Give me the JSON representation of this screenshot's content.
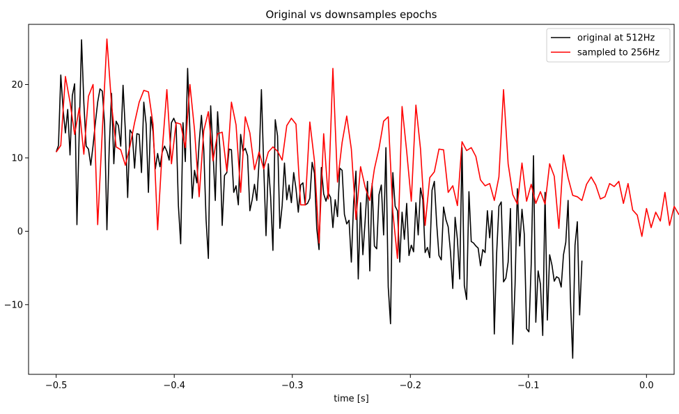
{
  "chart_data": {
    "type": "line",
    "title": "Original vs downsamples epochs",
    "xlabel": "time [s]",
    "ylabel": "",
    "xlim": [
      -0.5234,
      0.0234
    ],
    "ylim": [
      -19.5,
      28.2
    ],
    "xticks": [
      -0.5,
      -0.4,
      -0.3,
      -0.2,
      -0.1,
      0.0
    ],
    "xtick_labels": [
      "−0.5",
      "−0.4",
      "−0.3",
      "−0.2",
      "−0.1",
      "0.0"
    ],
    "yticks": [
      -10,
      0,
      10,
      20
    ],
    "ytick_labels": [
      "−10",
      "0",
      "10",
      "20"
    ],
    "grid": false,
    "legend_position": "top-right",
    "series": [
      {
        "name": "original at 512Hz",
        "color": "#000000",
        "x_start": -0.5,
        "dx": 0.001953125,
        "values": [
          10.8,
          11.7,
          21.3,
          16.6,
          13.4,
          16.6,
          10.4,
          18.5,
          20.1,
          0.9,
          13.5,
          26.1,
          17.5,
          11.6,
          11.2,
          9.0,
          11.7,
          14.8,
          17.6,
          19.4,
          19.1,
          14.6,
          0.2,
          11.3,
          18.8,
          9.2,
          15.0,
          14.4,
          11.6,
          19.9,
          13.7,
          4.6,
          13.8,
          13.3,
          8.6,
          13.3,
          13.2,
          8.0,
          17.6,
          14.6,
          5.3,
          15.6,
          13.6,
          8.5,
          10.6,
          8.8,
          10.8,
          11.6,
          10.9,
          9.7,
          14.8,
          15.4,
          14.6,
          3.5,
          -1.7,
          14.8,
          9.5,
          22.2,
          13.6,
          4.5,
          8.3,
          6.6,
          12.1,
          15.8,
          11.2,
          1.6,
          -3.7,
          17.1,
          10.8,
          4.2,
          16.3,
          11.2,
          0.8,
          7.6,
          8.0,
          11.2,
          11.1,
          5.3,
          6.2,
          3.6,
          13.2,
          10.9,
          11.3,
          10.3,
          2.8,
          4.3,
          6.4,
          4.2,
          9.6,
          19.3,
          8.9,
          -0.6,
          9.2,
          4.7,
          -2.6,
          15.2,
          13.0,
          0.4,
          3.5,
          9.3,
          4.3,
          6.3,
          3.9,
          8.0,
          5.8,
          2.6,
          6.3,
          6.6,
          3.6,
          3.8,
          4.5,
          9.4,
          7.9,
          0.4,
          -2.5,
          8.7,
          5.1,
          4.1,
          5.2,
          4.6,
          0.5,
          4.3,
          2.0,
          8.6,
          8.3,
          2.3,
          1.0,
          1.5,
          -4.2,
          4.0,
          8.2,
          -6.5,
          3.9,
          -3.2,
          1.5,
          6.8,
          -5.4,
          6.5,
          -2.0,
          -2.4,
          5.0,
          6.3,
          -0.5,
          11.4,
          -7.6,
          -12.6,
          8.0,
          3.4,
          2.8,
          -4.2,
          2.6,
          -1.1,
          3.8,
          -3.3,
          -1.9,
          -2.8,
          3.9,
          -0.5,
          5.9,
          4.3,
          -2.9,
          -2.2,
          -3.6,
          5.6,
          6.8,
          1.1,
          -3.3,
          -3.9,
          3.3,
          1.6,
          0.6,
          -2.8,
          -7.8,
          1.9,
          -1.1,
          -6.5,
          11.4,
          -7.4,
          -9.3,
          5.4,
          -1.4,
          -1.6,
          -2.0,
          -2.3,
          -4.7,
          -2.5,
          -2.9,
          2.8,
          -0.9,
          2.8,
          -14.0,
          -3.1,
          3.4,
          4.0,
          -6.9,
          -6.4,
          -4.2,
          3.1,
          -15.4,
          -7.3,
          5.8,
          -2.0,
          3.0,
          -0.4,
          -13.3,
          -13.7,
          -4.5,
          10.3,
          -12.4,
          -5.4,
          -7.2,
          -14.2,
          5.3,
          -12.1,
          -3.2,
          -4.6,
          -6.8,
          -6.2,
          -6.4,
          -7.6,
          -3.2,
          -1.5,
          4.2,
          -9.2,
          -17.3,
          -1.9,
          1.3,
          -11.4,
          -4.0
        ]
      },
      {
        "name": "sampled to 256Hz",
        "color": "#ff0000",
        "x_start": -0.5,
        "dx": 0.00390625,
        "values": [
          10.8,
          11.7,
          21.1,
          17.6,
          13.2,
          16.8,
          10.5,
          18.4,
          20.0,
          0.9,
          13.6,
          26.2,
          17.3,
          11.5,
          11.1,
          9.0,
          11.6,
          14.8,
          17.6,
          19.2,
          19.0,
          14.6,
          0.2,
          11.1,
          19.3,
          9.2,
          14.8,
          14.6,
          11.4,
          20.0,
          13.8,
          4.7,
          13.7,
          16.3,
          9.6,
          13.3,
          13.5,
          8.2,
          17.6,
          14.5,
          5.3,
          15.6,
          13.4,
          8.4,
          10.8,
          8.5,
          10.8,
          11.5,
          10.9,
          9.7,
          14.4,
          15.4,
          14.6,
          3.6,
          3.6,
          14.9,
          9.6,
          -1.6,
          13.3,
          4.4,
          22.2,
          6.7,
          12.1,
          15.7,
          11.2,
          1.6,
          8.8,
          6.0,
          4.2,
          8.5,
          11.3,
          15.0,
          15.6,
          2.6,
          -3.7,
          17.0,
          10.9,
          4.1,
          17.2,
          11.2,
          0.8,
          7.3,
          8.1,
          11.2,
          11.1,
          5.3,
          6.2,
          3.5,
          12.2,
          11.0,
          11.4,
          10.2,
          7.0,
          6.2,
          6.5,
          4.2,
          7.4,
          19.3,
          9.2,
          5.0,
          3.7,
          9.3,
          4.1,
          6.4,
          3.8,
          5.4,
          3.7,
          9.2,
          7.5,
          0.4,
          10.4,
          7.3,
          4.9,
          4.7,
          4.2,
          6.4,
          7.4,
          6.3,
          4.4,
          4.7,
          6.5,
          6.1,
          6.8,
          3.8,
          6.5,
          2.9,
          2.2,
          -0.7,
          3.1,
          0.5,
          2.6,
          1.4,
          5.3,
          0.8,
          3.4,
          2.3,
          2.8
        ]
      }
    ]
  }
}
